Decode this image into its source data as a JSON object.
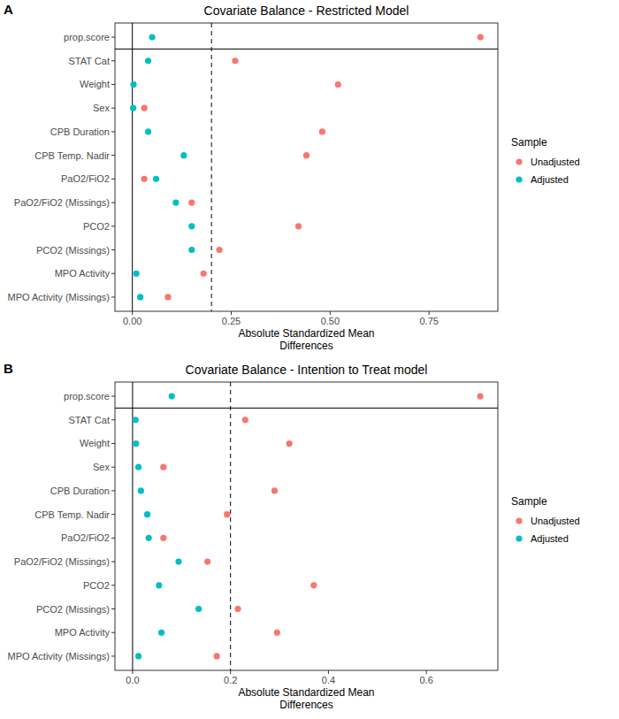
{
  "chart_data": [
    {
      "type": "dot",
      "orientation": "horizontal",
      "panel_label": "A",
      "title": "Covariate Balance - Restricted Model",
      "x_label": "Absolute Standardized Mean Differences",
      "legend_title": "Sample",
      "threshold": 0.2,
      "categories": [
        "prop.score",
        "STAT Cat",
        "Weight",
        "Sex",
        "CPB Duration",
        "CPB Temp. Nadir",
        "PaO2/FiO2",
        "PaO2/FiO2 (Missings)",
        "PCO2",
        "PCO2 (Missings)",
        "MPO Activity",
        "MPO Activity (Missings)"
      ],
      "series": [
        {
          "name": "Unadjusted",
          "color": "#F8766D",
          "values": [
            0.88,
            0.26,
            0.52,
            0.03,
            0.48,
            0.44,
            0.03,
            0.15,
            0.42,
            0.22,
            0.18,
            0.09
          ]
        },
        {
          "name": "Adjusted",
          "color": "#00BFC4",
          "values": [
            0.05,
            0.04,
            0.003,
            0.002,
            0.04,
            0.13,
            0.06,
            0.11,
            0.15,
            0.15,
            0.01,
            0.02
          ]
        }
      ],
      "xlim": [
        -0.044,
        0.924
      ],
      "xticks": [
        {
          "value": 0,
          "label": "0.00"
        },
        {
          "value": 0.25,
          "label": "0.25"
        },
        {
          "value": 0.5,
          "label": "0.50"
        },
        {
          "value": 0.75,
          "label": "0.75"
        }
      ],
      "legend": "right"
    },
    {
      "type": "dot",
      "orientation": "horizontal",
      "panel_label": "B",
      "title": "Covariate Balance - Intention to Treat model",
      "x_label": "Absolute Standardized Mean Differences",
      "legend_title": "Sample",
      "threshold": 0.2,
      "categories": [
        "prop.score",
        "STAT Cat",
        "Weight",
        "Sex",
        "CPB Duration",
        "CPB Temp. Nadir",
        "PaO2/FiO2",
        "PaO2/FiO2 (Missings)",
        "PCO2",
        "PCO2 (Missings)",
        "MPO Activity",
        "MPO Activity (Missings)"
      ],
      "series": [
        {
          "name": "Unadjusted",
          "color": "#F8766D",
          "values": [
            0.71,
            0.23,
            0.32,
            0.063,
            0.29,
            0.193,
            0.063,
            0.153,
            0.37,
            0.215,
            0.295,
            0.172
          ]
        },
        {
          "name": "Adjusted",
          "color": "#00BFC4",
          "values": [
            0.08,
            0.006,
            0.007,
            0.012,
            0.017,
            0.03,
            0.033,
            0.094,
            0.054,
            0.135,
            0.059,
            0.012
          ]
        }
      ],
      "xlim": [
        -0.036,
        0.746
      ],
      "xticks": [
        {
          "value": 0,
          "label": "0.0"
        },
        {
          "value": 0.2,
          "label": "0.2"
        },
        {
          "value": 0.4,
          "label": "0.4"
        },
        {
          "value": 0.6,
          "label": "0.6"
        }
      ],
      "legend": "right"
    }
  ]
}
